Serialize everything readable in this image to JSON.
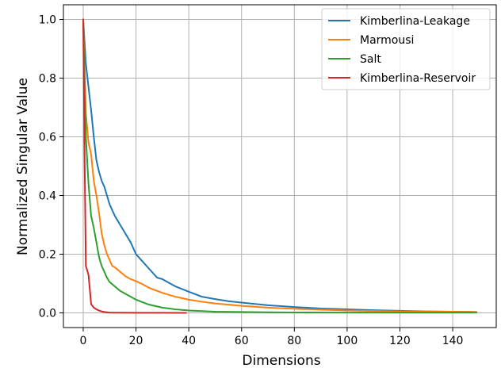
{
  "chart_data": {
    "type": "line",
    "title": "",
    "xlabel": "Dimensions",
    "ylabel": "Normalized Singular Value",
    "xlim": [
      -7.5,
      156.5
    ],
    "ylim": [
      -0.05,
      1.05
    ],
    "xticks": [
      0,
      20,
      40,
      60,
      80,
      100,
      120,
      140
    ],
    "yticks": [
      0.0,
      0.2,
      0.4,
      0.6,
      0.8,
      1.0
    ],
    "xtick_labels": [
      "0",
      "20",
      "40",
      "60",
      "80",
      "100",
      "120",
      "140"
    ],
    "ytick_labels": [
      "0.0",
      "0.2",
      "0.4",
      "0.6",
      "0.8",
      "1.0"
    ],
    "grid": true,
    "legend_position": "top-right",
    "series": [
      {
        "name": "Kimberlina-Leakage",
        "color": "#1f77b4",
        "x": [
          0,
          1,
          2,
          3,
          4,
          5,
          6,
          7,
          8,
          9,
          10,
          12,
          14,
          16,
          18,
          20,
          22,
          25,
          28,
          30,
          35,
          40,
          45,
          50,
          55,
          60,
          70,
          80,
          90,
          100,
          110,
          120,
          130,
          140,
          149
        ],
        "y": [
          1.0,
          0.85,
          0.77,
          0.69,
          0.6,
          0.52,
          0.48,
          0.45,
          0.43,
          0.4,
          0.37,
          0.33,
          0.3,
          0.27,
          0.24,
          0.2,
          0.18,
          0.15,
          0.12,
          0.115,
          0.09,
          0.072,
          0.055,
          0.047,
          0.04,
          0.035,
          0.026,
          0.02,
          0.015,
          0.012,
          0.009,
          0.007,
          0.005,
          0.004,
          0.003
        ]
      },
      {
        "name": "Marmousi",
        "color": "#ff7f0e",
        "x": [
          0,
          1,
          2,
          3,
          4,
          5,
          6,
          7,
          8,
          9,
          10,
          11,
          12,
          14,
          16,
          18,
          20,
          22,
          25,
          28,
          30,
          35,
          40,
          45,
          50,
          60,
          70,
          80,
          90,
          100,
          120,
          140,
          149
        ],
        "y": [
          1.0,
          0.68,
          0.58,
          0.54,
          0.45,
          0.4,
          0.34,
          0.27,
          0.23,
          0.2,
          0.18,
          0.16,
          0.155,
          0.14,
          0.125,
          0.115,
          0.108,
          0.1,
          0.085,
          0.075,
          0.068,
          0.055,
          0.045,
          0.038,
          0.032,
          0.024,
          0.018,
          0.014,
          0.011,
          0.008,
          0.005,
          0.004,
          0.003
        ]
      },
      {
        "name": "Salt",
        "color": "#2ca02c",
        "x": [
          0,
          1,
          2,
          3,
          4,
          5,
          6,
          7,
          8,
          9,
          10,
          12,
          14,
          16,
          18,
          20,
          22,
          25,
          28,
          30,
          35,
          40,
          45,
          50,
          60,
          70,
          80,
          100,
          120,
          149
        ],
        "y": [
          1.0,
          0.6,
          0.44,
          0.33,
          0.29,
          0.24,
          0.19,
          0.16,
          0.14,
          0.12,
          0.105,
          0.09,
          0.075,
          0.065,
          0.055,
          0.045,
          0.038,
          0.028,
          0.022,
          0.018,
          0.012,
          0.008,
          0.006,
          0.004,
          0.003,
          0.002,
          0.0015,
          0.001,
          0.001,
          0.001
        ]
      },
      {
        "name": "Kimberlina-Reservoir",
        "color": "#d62728",
        "x": [
          0,
          0.5,
          1,
          2,
          3,
          4,
          5,
          6,
          7,
          8,
          10,
          15,
          20,
          30,
          39
        ],
        "y": [
          1.0,
          0.55,
          0.16,
          0.13,
          0.03,
          0.018,
          0.012,
          0.008,
          0.005,
          0.003,
          0.001,
          0.0005,
          0.0003,
          0.0002,
          0.0001
        ]
      }
    ]
  }
}
